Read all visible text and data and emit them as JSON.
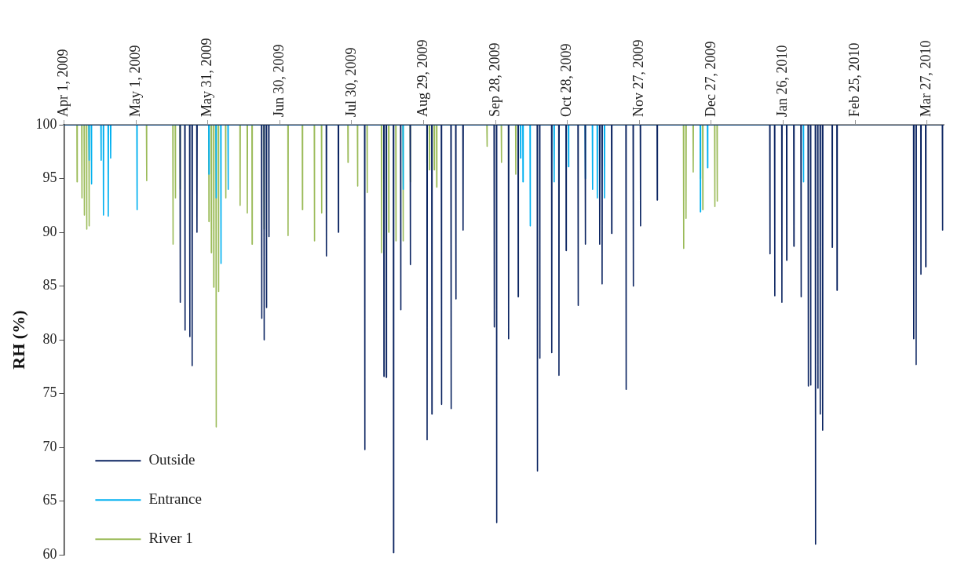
{
  "chart_data": {
    "type": "line",
    "ylabel": "RH (%)",
    "ylim": [
      60,
      100
    ],
    "yticks": [
      60,
      65,
      70,
      75,
      80,
      85,
      90,
      95,
      100
    ],
    "xlim": [
      "2009-04-01",
      "2010-04-03"
    ],
    "xticks": [
      {
        "value": "2009-04-01",
        "label": "Apr 1, 2009"
      },
      {
        "value": "2009-05-01",
        "label": "May 1, 2009"
      },
      {
        "value": "2009-05-31",
        "label": "May 31, 2009"
      },
      {
        "value": "2009-06-30",
        "label": "Jun 30, 2009"
      },
      {
        "value": "2009-07-30",
        "label": "Jul 30, 2009"
      },
      {
        "value": "2009-08-29",
        "label": "Aug 29, 2009"
      },
      {
        "value": "2009-09-28",
        "label": "Sep 28, 2009"
      },
      {
        "value": "2009-10-28",
        "label": "Oct 28, 2009"
      },
      {
        "value": "2009-11-27",
        "label": "Nov 27, 2009"
      },
      {
        "value": "2009-12-27",
        "label": "Dec 27, 2009"
      },
      {
        "value": "2010-01-26",
        "label": "Jan 26, 2010"
      },
      {
        "value": "2010-02-25",
        "label": "Feb 25, 2010"
      },
      {
        "value": "2010-03-27",
        "label": "Mar 27, 2010"
      }
    ],
    "legend": "bottom left",
    "series": [
      {
        "name": "Outside",
        "color": "#0b2461",
        "x": [
          "2009-04-01",
          "2009-05-19T10:00",
          "2009-05-19T12:00",
          "2009-05-19T14:00",
          "2009-05-21T10:00",
          "2009-05-21T12:00",
          "2009-05-21T14:00",
          "2009-05-23T10:00",
          "2009-05-23T12:00",
          "2009-05-23T14:00",
          "2009-05-24T10:00",
          "2009-05-24T12:00",
          "2009-05-24T14:00",
          "2009-05-26T10:00",
          "2009-05-26T12:00",
          "2009-05-26T14:00",
          "2009-06-22T10:00",
          "2009-06-22T12:00",
          "2009-06-22T14:00",
          "2009-06-23T10:00",
          "2009-06-23T12:00",
          "2009-06-23T14:00",
          "2009-06-24T10:00",
          "2009-06-24T12:00",
          "2009-06-24T14:00",
          "2009-06-25T10:00",
          "2009-06-25T12:00",
          "2009-06-25T14:00",
          "2009-07-19T10:00",
          "2009-07-19T12:00",
          "2009-07-19T14:00",
          "2009-07-24T10:00",
          "2009-07-24T12:00",
          "2009-07-24T14:00",
          "2009-08-04T10:00",
          "2009-08-04T12:00",
          "2009-08-04T14:00",
          "2009-08-12T10:00",
          "2009-08-12T12:00",
          "2009-08-12T14:00",
          "2009-08-13T10:00",
          "2009-08-13T12:00",
          "2009-08-13T14:00",
          "2009-08-16T10:00",
          "2009-08-16T12:00",
          "2009-08-16T14:00",
          "2009-08-19T10:00",
          "2009-08-19T12:00",
          "2009-08-19T14:00",
          "2009-08-23T10:00",
          "2009-08-23T12:00",
          "2009-08-23T14:00",
          "2009-08-30T10:00",
          "2009-08-30T12:00",
          "2009-08-30T14:00",
          "2009-09-01T10:00",
          "2009-09-01T12:00",
          "2009-09-01T14:00",
          "2009-09-05T10:00",
          "2009-09-05T12:00",
          "2009-09-05T14:00",
          "2009-09-09T10:00",
          "2009-09-09T12:00",
          "2009-09-09T14:00",
          "2009-09-11T10:00",
          "2009-09-11T12:00",
          "2009-09-11T14:00",
          "2009-09-14T10:00",
          "2009-09-14T12:00",
          "2009-09-14T14:00",
          "2009-09-27T10:00",
          "2009-09-27T12:00",
          "2009-09-27T14:00",
          "2009-09-28T10:00",
          "2009-09-28T12:00",
          "2009-09-28T14:00",
          "2009-10-03T10:00",
          "2009-10-03T12:00",
          "2009-10-03T14:00",
          "2009-10-07T10:00",
          "2009-10-07T12:00",
          "2009-10-07T14:00",
          "2009-10-15T10:00",
          "2009-10-15T12:00",
          "2009-10-15T14:00",
          "2009-10-16T10:00",
          "2009-10-16T12:00",
          "2009-10-16T14:00",
          "2009-10-21T10:00",
          "2009-10-21T12:00",
          "2009-10-21T14:00",
          "2009-10-24T10:00",
          "2009-10-24T12:00",
          "2009-10-24T14:00",
          "2009-10-27T10:00",
          "2009-10-27T12:00",
          "2009-10-27T14:00",
          "2009-11-01T10:00",
          "2009-11-01T12:00",
          "2009-11-01T14:00",
          "2009-11-04T10:00",
          "2009-11-04T12:00",
          "2009-11-04T14:00",
          "2009-11-10T10:00",
          "2009-11-10T12:00",
          "2009-11-10T14:00",
          "2009-11-11T10:00",
          "2009-11-11T12:00",
          "2009-11-11T14:00",
          "2009-11-15T10:00",
          "2009-11-15T12:00",
          "2009-11-15T14:00",
          "2009-11-21T10:00",
          "2009-11-21T12:00",
          "2009-11-21T14:00",
          "2009-11-24T10:00",
          "2009-11-24T12:00",
          "2009-11-24T14:00",
          "2009-11-27T10:00",
          "2009-11-27T12:00",
          "2009-11-27T14:00",
          "2009-12-04T10:00",
          "2009-12-04T12:00",
          "2009-12-04T14:00",
          "2010-01-20T10:00",
          "2010-01-20T12:00",
          "2010-01-20T14:00",
          "2010-01-22T10:00",
          "2010-01-22T12:00",
          "2010-01-22T14:00",
          "2010-01-25T10:00",
          "2010-01-25T12:00",
          "2010-01-25T14:00",
          "2010-01-27T10:00",
          "2010-01-27T12:00",
          "2010-01-27T14:00",
          "2010-01-30T10:00",
          "2010-01-30T12:00",
          "2010-01-30T14:00",
          "2010-02-02T10:00",
          "2010-02-02T12:00",
          "2010-02-02T14:00",
          "2010-02-05T10:00",
          "2010-02-05T12:00",
          "2010-02-05T14:00",
          "2010-02-06T10:00",
          "2010-02-06T12:00",
          "2010-02-06T14:00",
          "2010-02-08T10:00",
          "2010-02-08T12:00",
          "2010-02-08T14:00",
          "2010-02-09T10:00",
          "2010-02-09T12:00",
          "2010-02-09T14:00",
          "2010-02-10T10:00",
          "2010-02-10T12:00",
          "2010-02-10T14:00",
          "2010-02-11T10:00",
          "2010-02-11T12:00",
          "2010-02-11T14:00",
          "2010-02-15T10:00",
          "2010-02-15T12:00",
          "2010-02-15T14:00",
          "2010-02-17T10:00",
          "2010-02-17T12:00",
          "2010-02-17T14:00",
          "2010-03-21T10:00",
          "2010-03-21T12:00",
          "2010-03-21T14:00",
          "2010-03-22T10:00",
          "2010-03-22T12:00",
          "2010-03-22T14:00",
          "2010-03-24T10:00",
          "2010-03-24T12:00",
          "2010-03-24T14:00",
          "2010-03-26T10:00",
          "2010-03-26T12:00",
          "2010-03-26T14:00",
          "2010-04-02T10:00",
          "2010-04-02T12:00",
          "2010-04-02T14:00",
          "2010-04-03"
        ],
        "values": [
          100,
          100,
          83.5,
          100,
          100,
          80.9,
          100,
          100,
          80.3,
          100,
          100,
          77.6,
          100,
          100,
          90,
          100,
          100,
          82,
          100,
          100,
          80,
          100,
          100,
          83,
          100,
          100,
          89.6,
          100,
          100,
          87.8,
          100,
          100,
          90,
          100,
          100,
          69.8,
          100,
          100,
          76.6,
          100,
          100,
          76.5,
          100,
          100,
          60.2,
          100,
          100,
          82.8,
          100,
          100,
          87,
          100,
          100,
          70.7,
          100,
          100,
          73.1,
          100,
          100,
          74,
          100,
          100,
          73.6,
          100,
          100,
          83.8,
          100,
          100,
          90.2,
          100,
          100,
          81.2,
          100,
          100,
          63,
          100,
          100,
          80.1,
          100,
          100,
          84,
          100,
          100,
          67.8,
          100,
          100,
          78.3,
          100,
          100,
          78.8,
          100,
          100,
          76.7,
          100,
          100,
          88.3,
          100,
          100,
          83.2,
          100,
          100,
          88.9,
          100,
          100,
          88.9,
          100,
          100,
          85.2,
          100,
          100,
          89.9,
          100,
          100,
          75.4,
          100,
          100,
          85,
          100,
          100,
          90.6,
          100,
          100,
          93,
          100,
          100,
          88,
          100,
          100,
          84.1,
          100,
          100,
          83.5,
          100,
          100,
          87.4,
          100,
          100,
          88.7,
          100,
          100,
          84,
          100,
          100,
          75.7,
          100,
          100,
          75.8,
          100,
          100,
          61,
          100,
          100,
          75.5,
          100,
          100,
          73.1,
          100,
          100,
          71.6,
          100,
          100,
          88.6,
          100,
          100,
          84.6,
          100,
          100,
          80.1,
          100,
          100,
          77.7,
          100,
          100,
          86.1,
          100,
          100,
          86.8,
          100,
          100,
          90.2,
          100,
          100
        ]
      },
      {
        "name": "Entrance",
        "color": "#00b0f0",
        "x": [
          "2009-04-01",
          "2009-04-11T10:00",
          "2009-04-11T12:00",
          "2009-04-11T14:00",
          "2009-04-12T10:00",
          "2009-04-12T12:00",
          "2009-04-12T14:00",
          "2009-04-16T10:00",
          "2009-04-16T12:00",
          "2009-04-16T14:00",
          "2009-04-17T10:00",
          "2009-04-17T12:00",
          "2009-04-17T14:00",
          "2009-04-19T10:00",
          "2009-04-19T12:00",
          "2009-04-19T14:00",
          "2009-04-20T10:00",
          "2009-04-20T12:00",
          "2009-04-20T14:00",
          "2009-05-01T10:00",
          "2009-05-01T12:00",
          "2009-05-01T14:00",
          "2009-05-31T10:00",
          "2009-05-31T12:00",
          "2009-05-31T14:00",
          "2009-06-03T10:00",
          "2009-06-03T12:00",
          "2009-06-03T14:00",
          "2009-06-05T10:00",
          "2009-06-05T12:00",
          "2009-06-05T14:00",
          "2009-06-08T10:00",
          "2009-06-08T12:00",
          "2009-06-08T14:00",
          "2009-08-20T10:00",
          "2009-08-20T12:00",
          "2009-08-20T14:00",
          "2009-10-08T10:00",
          "2009-10-08T12:00",
          "2009-10-08T14:00",
          "2009-10-09T10:00",
          "2009-10-09T12:00",
          "2009-10-09T14:00",
          "2009-10-12T10:00",
          "2009-10-12T12:00",
          "2009-10-12T14:00",
          "2009-10-22T10:00",
          "2009-10-22T12:00",
          "2009-10-22T14:00",
          "2009-10-28T10:00",
          "2009-10-28T12:00",
          "2009-10-28T14:00",
          "2009-11-04T10:00",
          "2009-11-04T12:00",
          "2009-11-04T14:00",
          "2009-11-07T10:00",
          "2009-11-07T12:00",
          "2009-11-07T14:00",
          "2009-11-09T10:00",
          "2009-11-09T12:00",
          "2009-11-09T14:00",
          "2009-11-12T10:00",
          "2009-11-12T12:00",
          "2009-11-12T14:00",
          "2009-12-22T10:00",
          "2009-12-22T12:00",
          "2009-12-22T14:00",
          "2009-12-25T10:00",
          "2009-12-25T12:00",
          "2009-12-25T14:00",
          "2010-02-03T10:00",
          "2010-02-03T12:00",
          "2010-02-03T14:00"
        ],
        "values": [
          100,
          100,
          96.7,
          100,
          100,
          94.5,
          100,
          100,
          96.7,
          100,
          100,
          91.6,
          100,
          100,
          91.5,
          100,
          100,
          96.9,
          100,
          100,
          92.1,
          100,
          100,
          95.4,
          100,
          100,
          93.2,
          100,
          100,
          87.1,
          100,
          100,
          94,
          100,
          100,
          94,
          100,
          100,
          96.9,
          100,
          100,
          94.7,
          100,
          100,
          90.6,
          100,
          100,
          94.7,
          100,
          100,
          96.1,
          100,
          100,
          95,
          100,
          100,
          94,
          100,
          100,
          93.2,
          100,
          100,
          93.2,
          100,
          100,
          91.9,
          100,
          100,
          96,
          100,
          100,
          94.7,
          100
        ]
      },
      {
        "name": "River 1",
        "color": "#9bbb59",
        "x": [
          "2009-04-01",
          "2009-04-06T10:00",
          "2009-04-06T12:00",
          "2009-04-06T14:00",
          "2009-04-08T10:00",
          "2009-04-08T12:00",
          "2009-04-08T14:00",
          "2009-04-09T10:00",
          "2009-04-09T12:00",
          "2009-04-09T14:00",
          "2009-04-10T10:00",
          "2009-04-10T12:00",
          "2009-04-10T14:00",
          "2009-04-11T10:00",
          "2009-04-11T12:00",
          "2009-04-11T14:00",
          "2009-05-05T10:00",
          "2009-05-05T12:00",
          "2009-05-05T14:00",
          "2009-05-16T10:00",
          "2009-05-16T12:00",
          "2009-05-16T14:00",
          "2009-05-17T10:00",
          "2009-05-17T12:00",
          "2009-05-17T14:00",
          "2009-05-19T10:00",
          "2009-05-19T12:00",
          "2009-05-19T14:00",
          "2009-05-31T10:00",
          "2009-05-31T12:00",
          "2009-05-31T14:00",
          "2009-06-01T10:00",
          "2009-06-01T12:00",
          "2009-06-01T14:00",
          "2009-06-02T10:00",
          "2009-06-02T12:00",
          "2009-06-02T14:00",
          "2009-06-03T10:00",
          "2009-06-03T12:00",
          "2009-06-03T14:00",
          "2009-06-04T10:00",
          "2009-06-04T12:00",
          "2009-06-04T14:00",
          "2009-06-07T10:00",
          "2009-06-07T12:00",
          "2009-06-07T14:00",
          "2009-06-13T10:00",
          "2009-06-13T12:00",
          "2009-06-13T14:00",
          "2009-06-16T10:00",
          "2009-06-16T12:00",
          "2009-06-16T14:00",
          "2009-06-18T10:00",
          "2009-06-18T12:00",
          "2009-06-18T14:00",
          "2009-06-23T10:00",
          "2009-06-23T12:00",
          "2009-06-23T14:00",
          "2009-07-03T10:00",
          "2009-07-03T12:00",
          "2009-07-03T14:00",
          "2009-07-09T10:00",
          "2009-07-09T12:00",
          "2009-07-09T14:00",
          "2009-07-14T10:00",
          "2009-07-14T12:00",
          "2009-07-14T14:00",
          "2009-07-17T10:00",
          "2009-07-17T12:00",
          "2009-07-17T14:00",
          "2009-07-28T10:00",
          "2009-07-28T12:00",
          "2009-07-28T14:00",
          "2009-08-01T10:00",
          "2009-08-01T12:00",
          "2009-08-01T14:00",
          "2009-08-05T10:00",
          "2009-08-05T12:00",
          "2009-08-05T14:00",
          "2009-08-11T10:00",
          "2009-08-11T12:00",
          "2009-08-11T14:00",
          "2009-08-14T10:00",
          "2009-08-14T12:00",
          "2009-08-14T14:00",
          "2009-08-17T10:00",
          "2009-08-17T12:00",
          "2009-08-17T14:00",
          "2009-08-20T10:00",
          "2009-08-20T12:00",
          "2009-08-20T14:00",
          "2009-08-23T10:00",
          "2009-08-23T12:00",
          "2009-08-23T14:00",
          "2009-08-31T10:00",
          "2009-08-31T12:00",
          "2009-08-31T14:00",
          "2009-09-02T10:00",
          "2009-09-02T12:00",
          "2009-09-02T14:00",
          "2009-09-03T10:00",
          "2009-09-03T12:00",
          "2009-09-03T14:00",
          "2009-09-24T10:00",
          "2009-09-24T12:00",
          "2009-09-24T14:00",
          "2009-09-30T10:00",
          "2009-09-30T12:00",
          "2009-09-30T14:00",
          "2009-10-06T10:00",
          "2009-10-06T12:00",
          "2009-10-06T14:00",
          "2009-12-15T10:00",
          "2009-12-15T12:00",
          "2009-12-15T14:00",
          "2009-12-16T10:00",
          "2009-12-16T12:00",
          "2009-12-16T14:00",
          "2009-12-19T10:00",
          "2009-12-19T12:00",
          "2009-12-19T14:00",
          "2009-12-22T10:00",
          "2009-12-22T12:00",
          "2009-12-22T14:00",
          "2009-12-23T10:00",
          "2009-12-23T12:00",
          "2009-12-23T14:00",
          "2009-12-28T10:00",
          "2009-12-28T12:00",
          "2009-12-28T14:00",
          "2009-12-29T10:00",
          "2009-12-29T12:00",
          "2009-12-29T14:00",
          "2010-04-03"
        ],
        "values": [
          100,
          100,
          94.7,
          100,
          100,
          93.2,
          100,
          100,
          91.6,
          100,
          100,
          90.3,
          100,
          100,
          90.6,
          100,
          100,
          94.8,
          100,
          100,
          88.9,
          100,
          100,
          93.2,
          100,
          100,
          94,
          100,
          100,
          91,
          100,
          100,
          88.1,
          100,
          100,
          84.9,
          100,
          100,
          71.9,
          100,
          100,
          84.5,
          100,
          100,
          93.2,
          100,
          100,
          92.5,
          100,
          100,
          91.8,
          100,
          100,
          88.9,
          100,
          100,
          90.3,
          100,
          100,
          89.7,
          100,
          100,
          92.1,
          100,
          100,
          89.2,
          100,
          100,
          91.8,
          100,
          100,
          96.5,
          100,
          100,
          94.3,
          100,
          100,
          93.7,
          100,
          100,
          88.1,
          100,
          100,
          90,
          100,
          100,
          89.2,
          100,
          100,
          89.2,
          100,
          100,
          94.7,
          100,
          100,
          95.8,
          100,
          100,
          95.8,
          100,
          100,
          94.2,
          100,
          100,
          98,
          100,
          100,
          96.5,
          100,
          100,
          95.4,
          100,
          100,
          88.5,
          100,
          100,
          91.3,
          100,
          100,
          95.6,
          100,
          100,
          95,
          100,
          100,
          92.1,
          100,
          100,
          92.4,
          100,
          100,
          92.9,
          100,
          100
        ]
      }
    ]
  }
}
